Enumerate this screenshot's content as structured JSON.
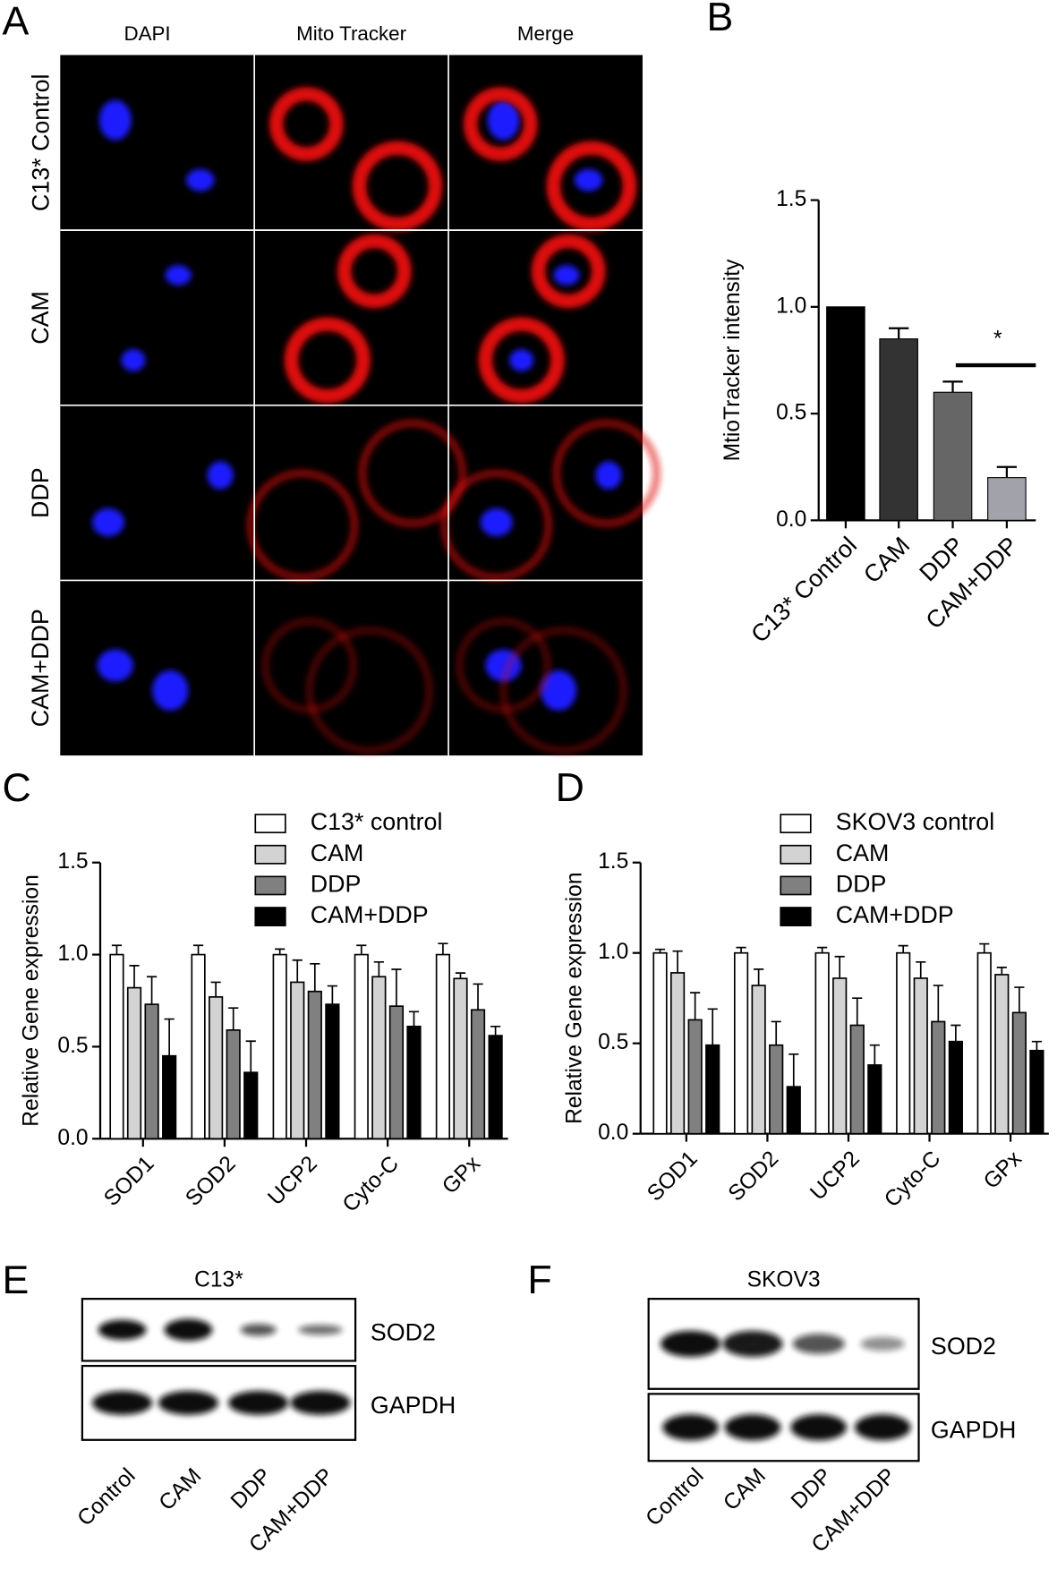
{
  "panel_a": {
    "label": "A",
    "columns": [
      "DAPI",
      "Mito Tracker",
      "Merge"
    ],
    "rows": [
      "C13* Control",
      "CAM",
      "DDP",
      "CAM+DDP"
    ]
  },
  "chart_data": [
    {
      "label": "B",
      "type": "bar",
      "ylabel": "MtioTracker intensity",
      "categories": [
        "C13* Control",
        "CAM",
        "DDP",
        "CAM+DDP"
      ],
      "values": [
        1.0,
        0.85,
        0.6,
        0.2
      ],
      "errors": [
        0,
        0.05,
        0.05,
        0.05
      ],
      "colors": [
        "#000000",
        "#333333",
        "#666666",
        "#a2a2aa"
      ],
      "ylim": [
        0,
        1.5
      ],
      "yticks": [
        {
          "value": 0,
          "label": "0.0"
        },
        0.5,
        {
          "value": 1,
          "label": "1.0"
        },
        1.5
      ],
      "annotation": "*"
    },
    {
      "label": "C",
      "type": "grouped_bar",
      "ylabel": "Relative Gene expression",
      "categories": [
        "SOD1",
        "SOD2",
        "UCP2",
        "Cyto-C",
        "GPx"
      ],
      "series": [
        {
          "name": "C13* control",
          "color": "#ffffff",
          "values": [
            1.0,
            1.0,
            1.0,
            1.0,
            1.0
          ],
          "errors": [
            0.05,
            0.05,
            0.03,
            0.05,
            0.06
          ]
        },
        {
          "name": "CAM",
          "color": "#d3d3d3",
          "values": [
            0.82,
            0.77,
            0.85,
            0.88,
            0.87
          ],
          "errors": [
            0.12,
            0.08,
            0.12,
            0.08,
            0.03
          ]
        },
        {
          "name": "DDP",
          "color": "#808080",
          "values": [
            0.73,
            0.59,
            0.8,
            0.72,
            0.7
          ],
          "errors": [
            0.15,
            0.12,
            0.15,
            0.2,
            0.14
          ]
        },
        {
          "name": "CAM+DDP",
          "color": "#000000",
          "values": [
            0.45,
            0.36,
            0.73,
            0.61,
            0.56
          ],
          "errors": [
            0.2,
            0.17,
            0.1,
            0.08,
            0.05
          ]
        }
      ],
      "ylim": [
        0,
        1.5
      ],
      "yticks": [
        {
          "value": 0,
          "label": "0.0"
        },
        0.5,
        {
          "value": 1,
          "label": "1.0"
        },
        1.5
      ]
    },
    {
      "label": "D",
      "type": "grouped_bar",
      "ylabel": "Relative Gene expression",
      "categories": [
        "SOD1",
        "SOD2",
        "UCP2",
        "Cyto-C",
        "GPx"
      ],
      "series": [
        {
          "name": "SKOV3 control",
          "color": "#ffffff",
          "values": [
            1.0,
            1.0,
            1.0,
            1.0,
            1.0
          ],
          "errors": [
            0.02,
            0.03,
            0.03,
            0.04,
            0.05
          ]
        },
        {
          "name": "CAM",
          "color": "#d3d3d3",
          "values": [
            0.89,
            0.82,
            0.86,
            0.86,
            0.88
          ],
          "errors": [
            0.12,
            0.09,
            0.12,
            0.09,
            0.04
          ]
        },
        {
          "name": "DDP",
          "color": "#808080",
          "values": [
            0.63,
            0.49,
            0.6,
            0.62,
            0.67
          ],
          "errors": [
            0.15,
            0.13,
            0.15,
            0.2,
            0.14
          ]
        },
        {
          "name": "CAM+DDP",
          "color": "#000000",
          "values": [
            0.49,
            0.26,
            0.38,
            0.51,
            0.46
          ],
          "errors": [
            0.2,
            0.18,
            0.11,
            0.09,
            0.05
          ]
        }
      ],
      "ylim": [
        0,
        1.5
      ],
      "yticks": [
        {
          "value": 0,
          "label": "0.0"
        },
        0.5,
        {
          "value": 1,
          "label": "1.0"
        },
        1.5
      ]
    }
  ],
  "panel_e": {
    "label": "E",
    "title": "C13*",
    "bands": [
      "SOD2",
      "GAPDH"
    ],
    "lanes": [
      "Control",
      "CAM",
      "DDP",
      "CAM+DDP"
    ]
  },
  "panel_f": {
    "label": "F",
    "title": "SKOV3",
    "bands": [
      "SOD2",
      "GAPDH"
    ],
    "lanes": [
      "Control",
      "CAM",
      "DDP",
      "CAM+DDP"
    ]
  }
}
